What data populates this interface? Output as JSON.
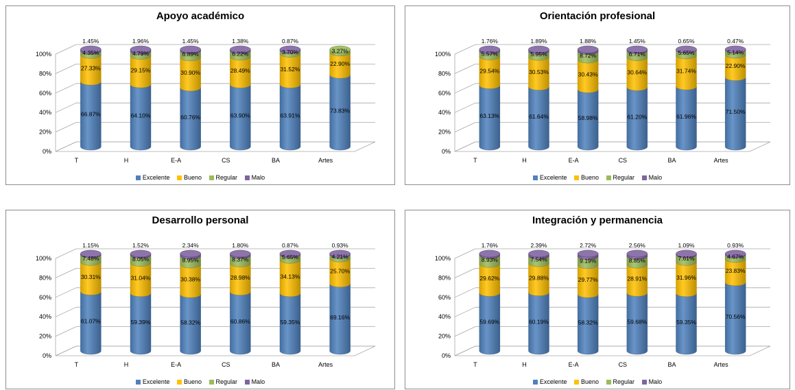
{
  "colors": {
    "Excelente": "#4f81bd",
    "Bueno": "#ffc000",
    "Regular": "#9bbb59",
    "Malo": "#8064a2"
  },
  "chart_data": [
    {
      "type": "bar",
      "stacked": "percent",
      "title": "Apoyo académico",
      "categories": [
        "T",
        "H",
        "E-A",
        "CS",
        "BA",
        "Artes"
      ],
      "yticks": [
        "0%",
        "20%",
        "40%",
        "60%",
        "80%",
        "100%"
      ],
      "ylim": [
        0,
        100
      ],
      "grid": true,
      "legend_position": "bottom",
      "series": [
        {
          "name": "Excelente",
          "values": [
            66.87,
            64.1,
            60.76,
            63.9,
            63.91,
            73.83
          ],
          "labels": [
            "66.87%",
            "64.10%",
            "60.76%",
            "63.90%",
            "63.91%",
            "73.83%"
          ]
        },
        {
          "name": "Bueno",
          "values": [
            27.33,
            29.15,
            30.9,
            28.49,
            31.52,
            22.9
          ],
          "labels": [
            "27.33%",
            "29.15%",
            "30.90%",
            "28.49%",
            "31.52%",
            "22.90%"
          ]
        },
        {
          "name": "Regular",
          "values": [
            4.35,
            4.79,
            6.89,
            6.22,
            3.7,
            3.27
          ],
          "labels": [
            "4.35%",
            "4.79%",
            "6.89%",
            "6.22%",
            "3.70%",
            "3.27%"
          ]
        },
        {
          "name": "Malo",
          "values": [
            1.45,
            1.96,
            1.45,
            1.38,
            0.87,
            0.0
          ],
          "labels": [
            "1.45%",
            "1.96%",
            "1.45%",
            "1.38%",
            "0.87%",
            ""
          ]
        }
      ]
    },
    {
      "type": "bar",
      "stacked": "percent",
      "title": "Orientación profesional",
      "categories": [
        "T",
        "H",
        "E-A",
        "CS",
        "BA",
        "Artes"
      ],
      "yticks": [
        "0%",
        "20%",
        "40%",
        "60%",
        "80%",
        "100%"
      ],
      "ylim": [
        0,
        100
      ],
      "grid": true,
      "legend_position": "bottom",
      "series": [
        {
          "name": "Excelente",
          "values": [
            63.13,
            61.64,
            58.98,
            61.2,
            61.96,
            71.5
          ],
          "labels": [
            "63.13%",
            "61.64%",
            "58.98%",
            "61.20%",
            "61.96%",
            "71.50%"
          ]
        },
        {
          "name": "Bueno",
          "values": [
            29.54,
            30.53,
            30.43,
            30.64,
            31.74,
            22.9
          ],
          "labels": [
            "29.54%",
            "30.53%",
            "30.43%",
            "30.64%",
            "31.74%",
            "22.90%"
          ]
        },
        {
          "name": "Regular",
          "values": [
            5.57,
            5.95,
            8.72,
            6.71,
            5.65,
            5.14
          ],
          "labels": [
            "5.57%",
            "5.95%",
            "8.72%",
            "6.71%",
            "5.65%",
            "5.14%"
          ]
        },
        {
          "name": "Malo",
          "values": [
            1.76,
            1.89,
            1.88,
            1.45,
            0.65,
            0.47
          ],
          "labels": [
            "1.76%",
            "1.89%",
            "1.88%",
            "1.45%",
            "0.65%",
            "0.47%"
          ]
        }
      ]
    },
    {
      "type": "bar",
      "stacked": "percent",
      "title": "Desarrollo personal",
      "categories": [
        "T",
        "H",
        "E-A",
        "CS",
        "BA",
        "Artes"
      ],
      "yticks": [
        "0%",
        "20%",
        "40%",
        "60%",
        "80%",
        "100%"
      ],
      "ylim": [
        0,
        100
      ],
      "grid": true,
      "legend_position": "bottom",
      "series": [
        {
          "name": "Excelente",
          "values": [
            61.07,
            59.39,
            58.32,
            60.86,
            59.35,
            69.16
          ],
          "labels": [
            "61.07%",
            "59.39%",
            "58.32%",
            "60.86%",
            "59.35%",
            "69.16%"
          ]
        },
        {
          "name": "Bueno",
          "values": [
            30.31,
            31.04,
            30.38,
            28.98,
            34.13,
            25.7
          ],
          "labels": [
            "30.31%",
            "31.04%",
            "30.38%",
            "28.98%",
            "34.13%",
            "25.70%"
          ]
        },
        {
          "name": "Regular",
          "values": [
            7.48,
            8.05,
            8.95,
            8.37,
            5.65,
            4.21
          ],
          "labels": [
            "7.48%",
            "8.05%",
            "8.95%",
            "8.37%",
            "5.65%",
            "4.21%"
          ]
        },
        {
          "name": "Malo",
          "values": [
            1.15,
            1.52,
            2.34,
            1.8,
            0.87,
            0.93
          ],
          "labels": [
            "1.15%",
            "1.52%",
            "2.34%",
            "1.80%",
            "0.87%",
            "0.93%"
          ]
        }
      ]
    },
    {
      "type": "bar",
      "stacked": "percent",
      "title": "Integración y permanencia",
      "categories": [
        "T",
        "H",
        "E-A",
        "CS",
        "BA",
        "Artes"
      ],
      "yticks": [
        "0%",
        "20%",
        "40%",
        "60%",
        "80%",
        "100%"
      ],
      "ylim": [
        0,
        100
      ],
      "grid": true,
      "legend_position": "bottom",
      "series": [
        {
          "name": "Excelente",
          "values": [
            59.69,
            60.19,
            58.32,
            59.68,
            59.35,
            70.56
          ],
          "labels": [
            "59.69%",
            "60.19%",
            "58.32%",
            "59.68%",
            "59.35%",
            "70.56%"
          ]
        },
        {
          "name": "Bueno",
          "values": [
            29.62,
            29.88,
            29.77,
            28.91,
            31.96,
            23.83
          ],
          "labels": [
            "29.62%",
            "29.88%",
            "29.77%",
            "28.91%",
            "31.96%",
            "23.83%"
          ]
        },
        {
          "name": "Regular",
          "values": [
            8.93,
            7.54,
            9.19,
            8.85,
            7.61,
            4.67
          ],
          "labels": [
            "8.93%",
            "7.54%",
            "9.19%",
            "8.85%",
            "7.61%",
            "4.67%"
          ]
        },
        {
          "name": "Malo",
          "values": [
            1.76,
            2.39,
            2.72,
            2.56,
            1.09,
            0.93
          ],
          "labels": [
            "1.76%",
            "2.39%",
            "2.72%",
            "2.56%",
            "1.09%",
            "0.93%"
          ]
        }
      ]
    }
  ]
}
